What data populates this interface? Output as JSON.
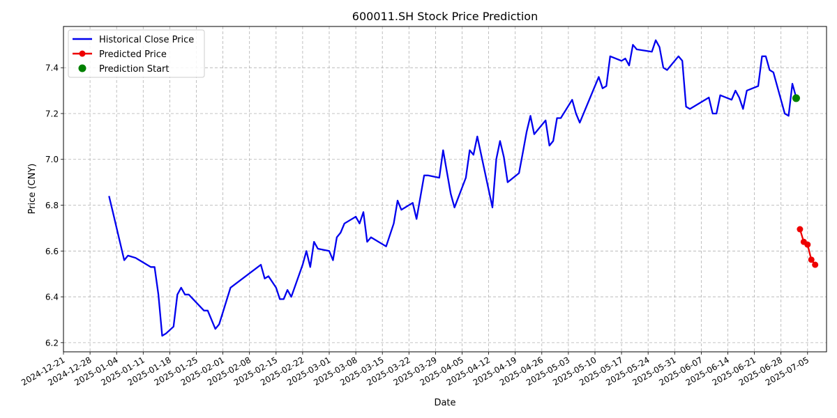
{
  "chart_data": {
    "type": "line",
    "title": "600011.SH Stock Price Prediction",
    "xlabel": "Date",
    "ylabel": "Price (CNY)",
    "xlim": [
      "2024-12-21",
      "2025-07-10"
    ],
    "ylim": [
      6.16,
      7.58
    ],
    "grid": true,
    "legend_position": "top-left",
    "x_ticks": [
      "2024-12-21",
      "2024-12-28",
      "2025-01-04",
      "2025-01-11",
      "2025-01-18",
      "2025-01-25",
      "2025-02-01",
      "2025-02-08",
      "2025-02-15",
      "2025-02-22",
      "2025-03-01",
      "2025-03-08",
      "2025-03-15",
      "2025-03-22",
      "2025-03-29",
      "2025-04-05",
      "2025-04-12",
      "2025-04-19",
      "2025-04-26",
      "2025-05-03",
      "2025-05-10",
      "2025-05-17",
      "2025-05-24",
      "2025-05-31",
      "2025-06-07",
      "2025-06-14",
      "2025-06-21",
      "2025-06-28",
      "2025-07-05"
    ],
    "y_ticks": [
      6.2,
      6.4,
      6.6,
      6.8,
      7.0,
      7.2,
      7.4
    ],
    "series": [
      {
        "name": "Historical Close Price",
        "style": "line",
        "color": "#0000ee",
        "points": [
          [
            "2025-01-02",
            6.84
          ],
          [
            "2025-01-03",
            6.77
          ],
          [
            "2025-01-06",
            6.56
          ],
          [
            "2025-01-07",
            6.58
          ],
          [
            "2025-01-09",
            6.57
          ],
          [
            "2025-01-10",
            6.56
          ],
          [
            "2025-01-13",
            6.53
          ],
          [
            "2025-01-14",
            6.53
          ],
          [
            "2025-01-15",
            6.41
          ],
          [
            "2025-01-16",
            6.23
          ],
          [
            "2025-01-17",
            6.24
          ],
          [
            "2025-01-19",
            6.27
          ],
          [
            "2025-01-20",
            6.41
          ],
          [
            "2025-01-21",
            6.44
          ],
          [
            "2025-01-22",
            6.41
          ],
          [
            "2025-01-23",
            6.41
          ],
          [
            "2025-01-27",
            6.34
          ],
          [
            "2025-01-28",
            6.34
          ],
          [
            "2025-01-30",
            6.26
          ],
          [
            "2025-01-31",
            6.28
          ],
          [
            "2025-02-03",
            6.44
          ],
          [
            "2025-02-11",
            6.54
          ],
          [
            "2025-02-12",
            6.48
          ],
          [
            "2025-02-13",
            6.49
          ],
          [
            "2025-02-15",
            6.44
          ],
          [
            "2025-02-16",
            6.39
          ],
          [
            "2025-02-17",
            6.39
          ],
          [
            "2025-02-18",
            6.43
          ],
          [
            "2025-02-19",
            6.4
          ],
          [
            "2025-02-22",
            6.54
          ],
          [
            "2025-02-23",
            6.6
          ],
          [
            "2025-02-24",
            6.53
          ],
          [
            "2025-02-25",
            6.64
          ],
          [
            "2025-02-26",
            6.61
          ],
          [
            "2025-03-01",
            6.6
          ],
          [
            "2025-03-02",
            6.56
          ],
          [
            "2025-03-03",
            6.66
          ],
          [
            "2025-03-04",
            6.68
          ],
          [
            "2025-03-05",
            6.72
          ],
          [
            "2025-03-08",
            6.75
          ],
          [
            "2025-03-09",
            6.72
          ],
          [
            "2025-03-10",
            6.77
          ],
          [
            "2025-03-11",
            6.64
          ],
          [
            "2025-03-12",
            6.66
          ],
          [
            "2025-03-16",
            6.62
          ],
          [
            "2025-03-18",
            6.72
          ],
          [
            "2025-03-19",
            6.82
          ],
          [
            "2025-03-20",
            6.78
          ],
          [
            "2025-03-23",
            6.81
          ],
          [
            "2025-03-24",
            6.74
          ],
          [
            "2025-03-26",
            6.93
          ],
          [
            "2025-03-27",
            6.93
          ],
          [
            "2025-03-30",
            6.92
          ],
          [
            "2025-03-31",
            7.04
          ],
          [
            "2025-04-02",
            6.85
          ],
          [
            "2025-04-03",
            6.79
          ],
          [
            "2025-04-06",
            6.92
          ],
          [
            "2025-04-07",
            7.04
          ],
          [
            "2025-04-08",
            7.02
          ],
          [
            "2025-04-09",
            7.1
          ],
          [
            "2025-04-13",
            6.79
          ],
          [
            "2025-04-14",
            7.0
          ],
          [
            "2025-04-15",
            7.08
          ],
          [
            "2025-04-16",
            7.01
          ],
          [
            "2025-04-17",
            6.9
          ],
          [
            "2025-04-20",
            6.94
          ],
          [
            "2025-04-21",
            7.03
          ],
          [
            "2025-04-22",
            7.12
          ],
          [
            "2025-04-23",
            7.19
          ],
          [
            "2025-04-24",
            7.11
          ],
          [
            "2025-04-27",
            7.17
          ],
          [
            "2025-04-28",
            7.06
          ],
          [
            "2025-04-29",
            7.08
          ],
          [
            "2025-04-30",
            7.18
          ],
          [
            "2025-05-01",
            7.18
          ],
          [
            "2025-05-04",
            7.26
          ],
          [
            "2025-05-05",
            7.2
          ],
          [
            "2025-05-06",
            7.16
          ],
          [
            "2025-05-11",
            7.36
          ],
          [
            "2025-05-12",
            7.31
          ],
          [
            "2025-05-13",
            7.32
          ],
          [
            "2025-05-14",
            7.45
          ],
          [
            "2025-05-17",
            7.43
          ],
          [
            "2025-05-18",
            7.44
          ],
          [
            "2025-05-19",
            7.41
          ],
          [
            "2025-05-20",
            7.5
          ],
          [
            "2025-05-21",
            7.48
          ],
          [
            "2025-05-25",
            7.47
          ],
          [
            "2025-05-26",
            7.52
          ],
          [
            "2025-05-27",
            7.49
          ],
          [
            "2025-05-28",
            7.4
          ],
          [
            "2025-05-29",
            7.39
          ],
          [
            "2025-06-01",
            7.45
          ],
          [
            "2025-06-02",
            7.43
          ],
          [
            "2025-06-03",
            7.23
          ],
          [
            "2025-06-04",
            7.22
          ],
          [
            "2025-06-09",
            7.27
          ],
          [
            "2025-06-10",
            7.2
          ],
          [
            "2025-06-11",
            7.2
          ],
          [
            "2025-06-12",
            7.28
          ],
          [
            "2025-06-15",
            7.26
          ],
          [
            "2025-06-16",
            7.3
          ],
          [
            "2025-06-17",
            7.27
          ],
          [
            "2025-06-18",
            7.22
          ],
          [
            "2025-06-19",
            7.3
          ],
          [
            "2025-06-22",
            7.32
          ],
          [
            "2025-06-23",
            7.45
          ],
          [
            "2025-06-24",
            7.45
          ],
          [
            "2025-06-25",
            7.39
          ],
          [
            "2025-06-26",
            7.38
          ],
          [
            "2025-06-29",
            7.2
          ],
          [
            "2025-06-30",
            7.19
          ],
          [
            "2025-07-01",
            7.33
          ],
          [
            "2025-07-02",
            7.27
          ]
        ]
      },
      {
        "name": "Predicted Price",
        "style": "line-marker",
        "color": "#ee0000",
        "points": [
          [
            "2025-07-03",
            6.695
          ],
          [
            "2025-07-04",
            6.64
          ],
          [
            "2025-07-05",
            6.628
          ],
          [
            "2025-07-06",
            6.562
          ],
          [
            "2025-07-07",
            6.54
          ]
        ]
      },
      {
        "name": "Prediction Start",
        "style": "marker",
        "color": "#008000",
        "points": [
          [
            "2025-07-02",
            7.267
          ]
        ]
      }
    ]
  }
}
